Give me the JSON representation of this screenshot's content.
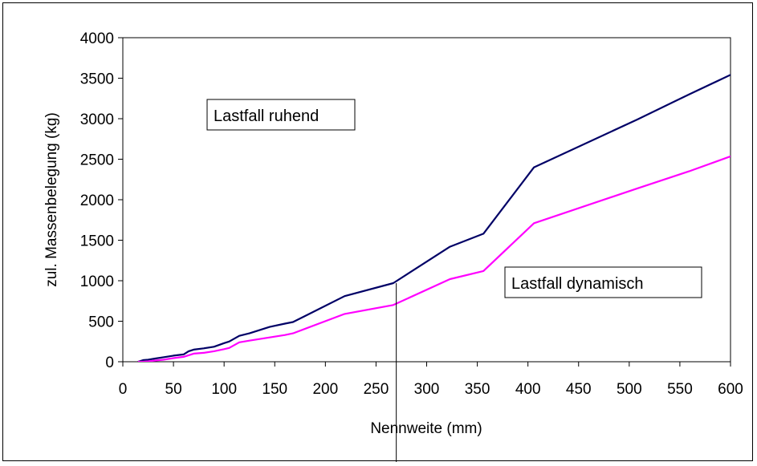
{
  "chart_data": {
    "type": "line",
    "title": "",
    "xlabel": "Nennweite (mm)",
    "ylabel": "zul. Massenbelegung (kg)",
    "xlim": [
      0,
      600
    ],
    "ylim": [
      0,
      4000
    ],
    "x_ticks": [
      "0",
      "50",
      "100",
      "150",
      "200",
      "250",
      "300",
      "350",
      "400",
      "450",
      "500",
      "550",
      "600"
    ],
    "y_ticks": [
      "0",
      "500",
      "1000",
      "1500",
      "2000",
      "2500",
      "3000",
      "3500",
      "4000"
    ],
    "grid": false,
    "legend": "none",
    "series": [
      {
        "color": "#000066",
        "x": [
          15,
          20,
          25,
          32,
          40,
          50,
          60,
          65,
          70,
          80,
          90,
          100,
          105,
          115,
          125,
          135,
          145,
          160,
          168,
          219,
          267,
          323,
          356,
          406,
          508,
          559,
          610
        ],
        "y": [
          0,
          20,
          25,
          40,
          55,
          75,
          90,
          130,
          150,
          165,
          185,
          230,
          250,
          320,
          350,
          390,
          430,
          470,
          490,
          810,
          970,
          1420,
          1580,
          2400,
          2990,
          3300,
          3600
        ]
      },
      {
        "color": "#ff00ff",
        "x": [
          15,
          20,
          25,
          32,
          40,
          50,
          60,
          65,
          70,
          80,
          90,
          100,
          105,
          115,
          125,
          135,
          145,
          160,
          168,
          219,
          267,
          323,
          356,
          406,
          508,
          559,
          610
        ],
        "y": [
          0,
          0,
          5,
          15,
          25,
          45,
          60,
          80,
          100,
          110,
          130,
          155,
          170,
          240,
          260,
          280,
          300,
          330,
          350,
          590,
          700,
          1020,
          1120,
          1710,
          2140,
          2350,
          2580
        ]
      }
    ],
    "annotations": [
      {
        "text": "Lastfall ruhend"
      },
      {
        "text": "Lastfall dynamisch"
      }
    ],
    "reference_line": {
      "x": 270
    }
  }
}
